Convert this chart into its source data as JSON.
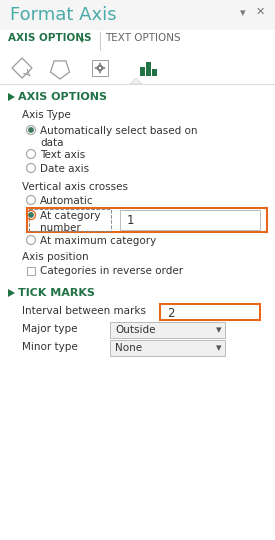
{
  "title": "Format Axis",
  "title_color": "#4AABA8",
  "bg_color": "#ffffff",
  "header_bg": "#f5f5f5",
  "tab1": "AXIS OPTIONS",
  "tab2": "TEXT OPTIONS",
  "tab1_color": "#217346",
  "tab2_color": "#666666",
  "section1": "AXIS OPTIONS",
  "section1_color": "#217346",
  "section2": "TICK MARKS",
  "section2_color": "#217346",
  "axis_type_label": "Axis Type",
  "radio_auto": "Automatically select based on\ndata",
  "radio_text": "Text axis",
  "radio_date": "Date axis",
  "vertical_axis_label": "Vertical axis crosses",
  "cross_auto": "Automatic",
  "cross_cat": "At category\nnumber",
  "cross_max": "At maximum category",
  "cross_value": "1",
  "axis_position_label": "Axis position",
  "checkbox_label": "Categories in reverse order",
  "tick_interval_label": "Interval between marks",
  "tick_interval_value": "2",
  "major_type_label": "Major type",
  "major_type_value": "Outside",
  "minor_type_label": "Minor type",
  "minor_type_value": "None",
  "highlight_color": "#E8651A",
  "dropdown_bg": "#f0f0f0",
  "radio_fill_color": "#3d7a5e",
  "separator_color": "#dddddd"
}
